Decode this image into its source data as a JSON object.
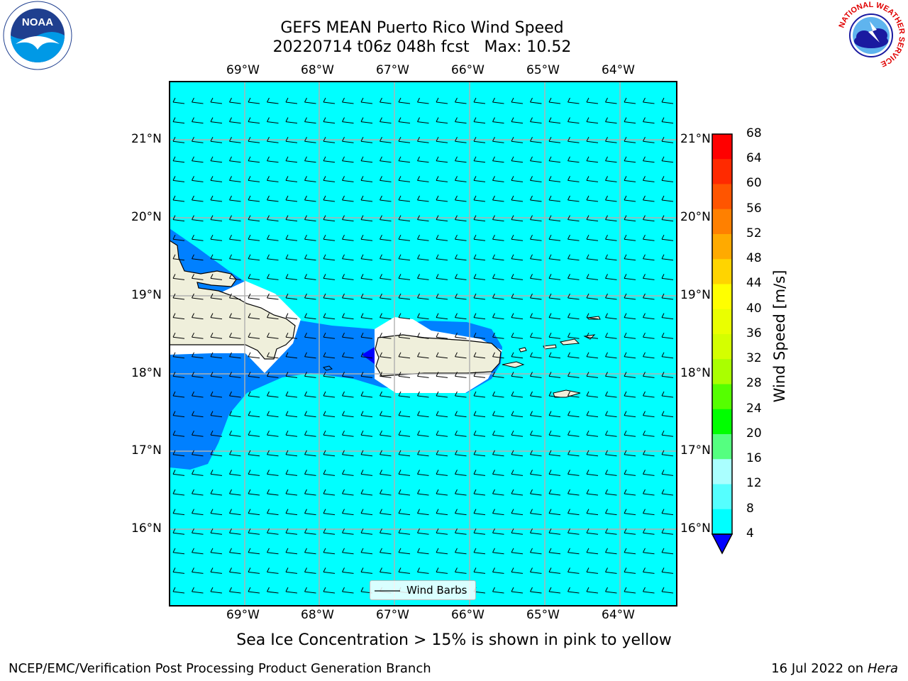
{
  "header": {
    "title_line1": "GEFS MEAN Puerto Rico Wind Speed",
    "title_line2": "20220714 t06z 048h fcst   Max: 10.52"
  },
  "logos": {
    "left": "NOAA",
    "left_ring_text": "NATIONAL OCEANIC AND ATMOSPHERIC ADMINISTRATION · U.S. DEPARTMENT OF COMMERCE",
    "right_ring_text": "NATIONAL WEATHER SERVICE"
  },
  "map": {
    "lon_labels": [
      "69°W",
      "68°W",
      "67°W",
      "66°W",
      "65°W",
      "64°W"
    ],
    "lat_labels": [
      "21°N",
      "20°N",
      "19°N",
      "18°N",
      "17°N",
      "16°N"
    ],
    "ocean_color": "#00ffff",
    "low_wind_color": "#0080ff",
    "calm_color": "#0000ff",
    "land_color": "#efefdb",
    "legend_label": "Wind Barbs"
  },
  "colorbar": {
    "label": "Wind Speed [m/s]",
    "ticks": [
      "68",
      "64",
      "60",
      "56",
      "52",
      "48",
      "44",
      "40",
      "36",
      "32",
      "28",
      "24",
      "20",
      "16",
      "12",
      "8",
      "4"
    ],
    "colors": [
      "#ff0000",
      "#ff2a00",
      "#ff5500",
      "#ff8000",
      "#ffaa00",
      "#ffd400",
      "#ffff00",
      "#eaff00",
      "#d4ff00",
      "#aaff00",
      "#55ff00",
      "#00ff00",
      "#55ff80",
      "#aaffff",
      "#55ffff",
      "#00ffff",
      "#0080ff"
    ],
    "under_color": "#0000ff"
  },
  "footer": {
    "note": "Sea Ice Concentration > 15% is shown in pink to yellow",
    "credit": "NCEP/EMC/Verification Post Processing Product Generation Branch",
    "date": "16 Jul 2022 on ",
    "machine": "Hera"
  }
}
